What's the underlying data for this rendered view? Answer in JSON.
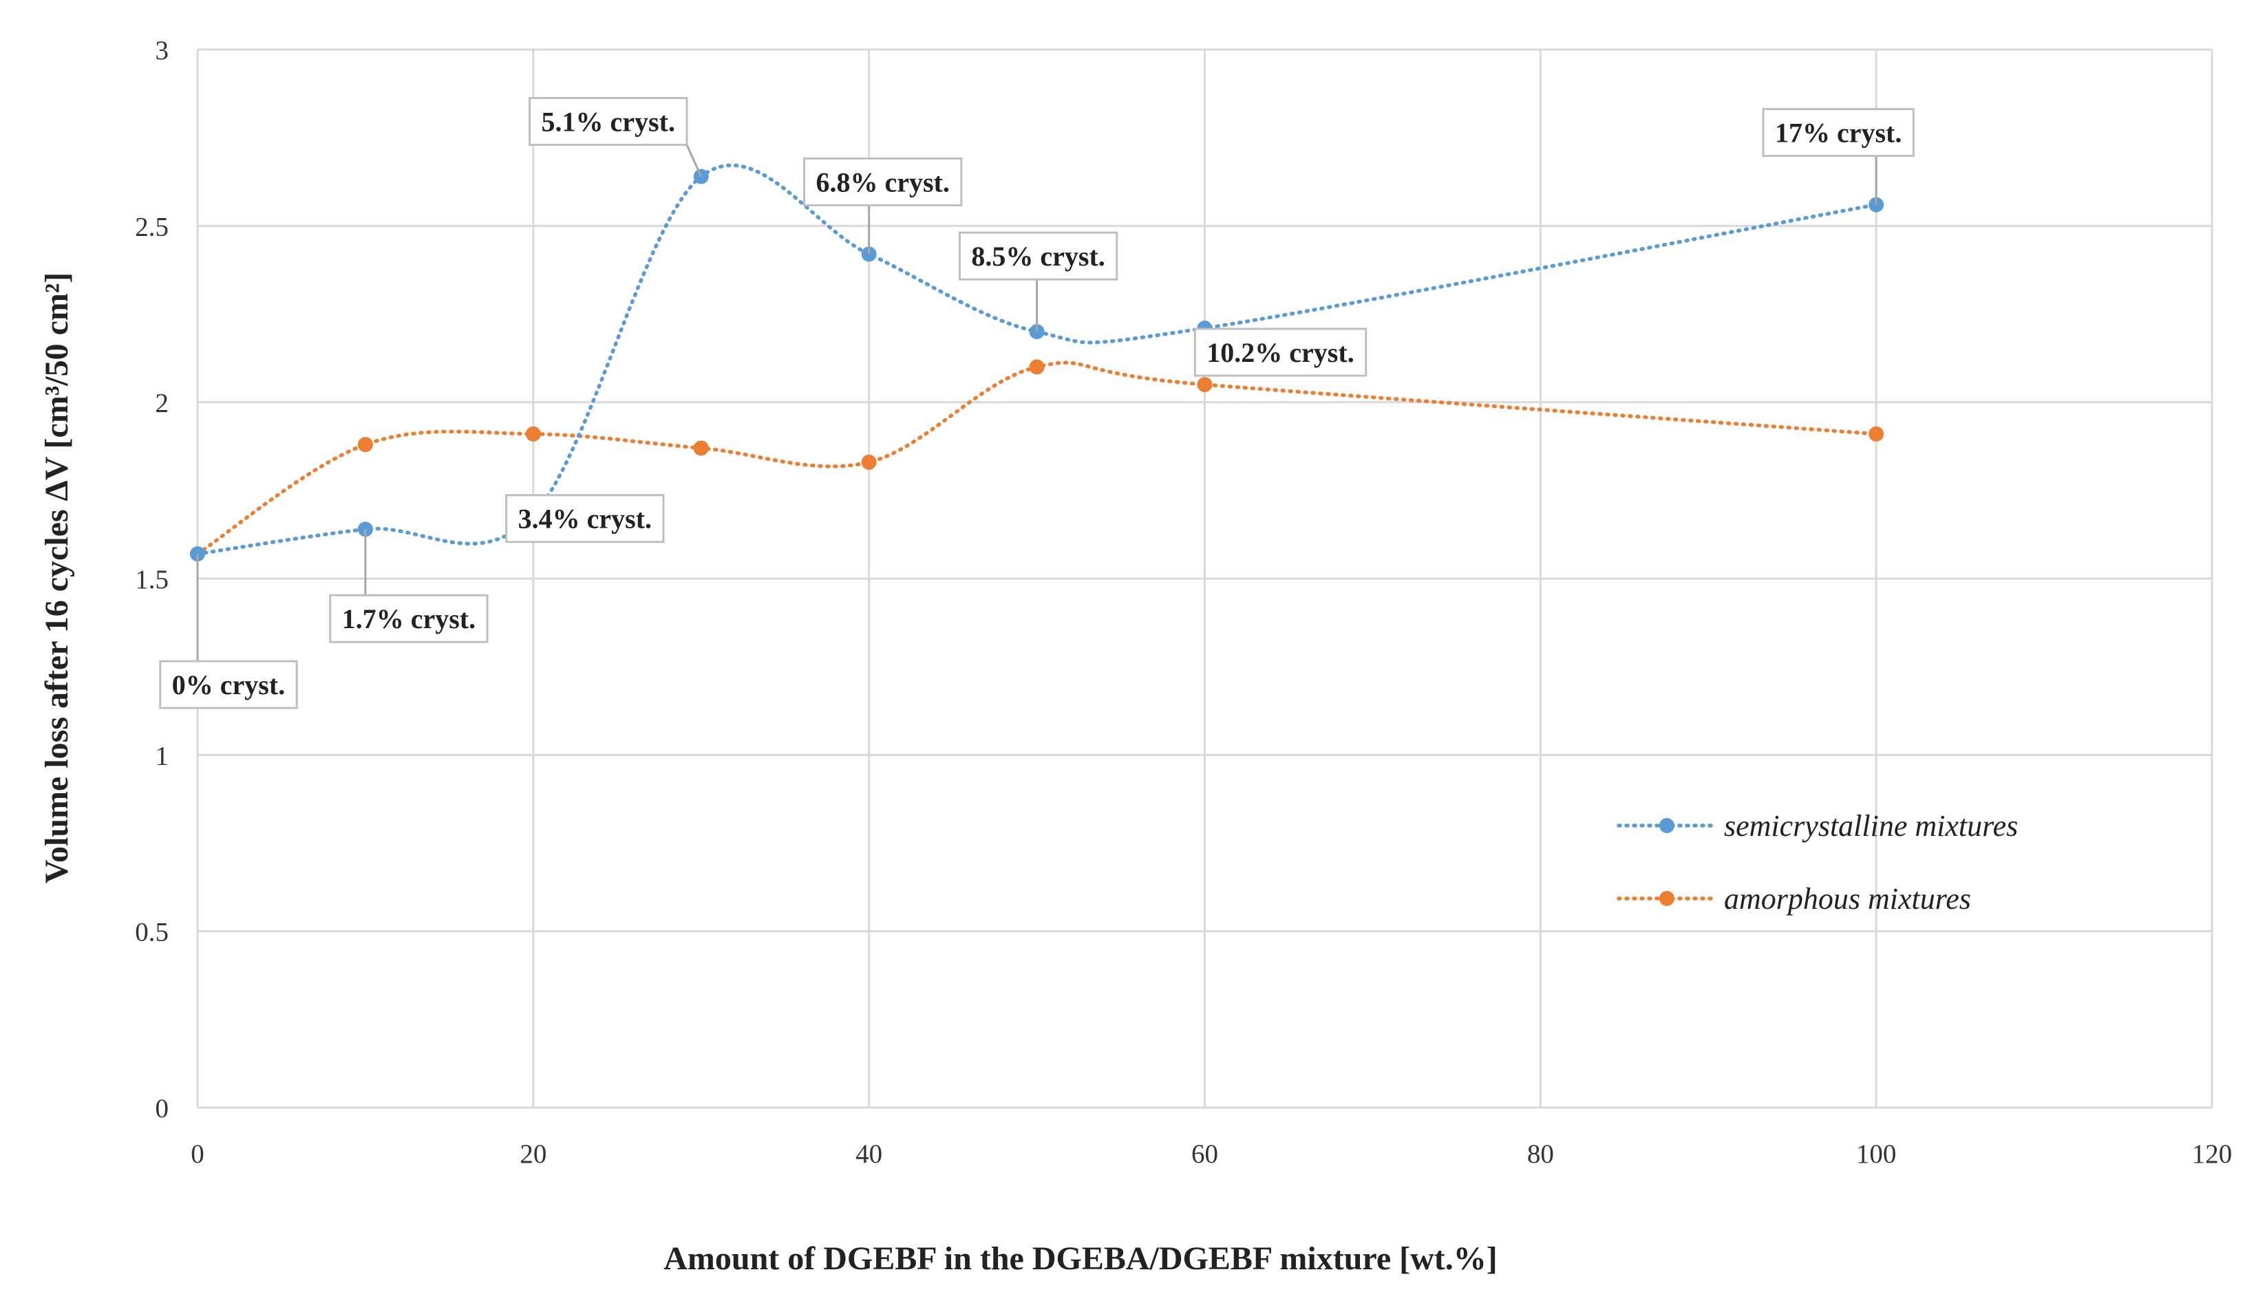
{
  "chart_data": {
    "type": "line",
    "title": "",
    "xlabel": "Amount of DGEBF in the DGEBA/DGEBF mixture [wt.%]",
    "ylabel": "Volume loss after 16 cycles   ΔV [cm³/50 cm²]",
    "xlim": [
      0,
      120
    ],
    "ylim": [
      0,
      3
    ],
    "xticks": [
      0,
      20,
      40,
      60,
      80,
      100,
      120
    ],
    "yticks": [
      0,
      0.5,
      1,
      1.5,
      2,
      2.5,
      3
    ],
    "ytick_labels": [
      "0",
      "0.5",
      "1",
      "1.5",
      "2",
      "2.5",
      "3"
    ],
    "grid": true,
    "legend_position": "lower-right",
    "series": [
      {
        "name": "semicrystalline mixtures",
        "color": "#5b9bd5",
        "x": [
          0,
          10,
          20,
          30,
          40,
          50,
          60,
          100
        ],
        "y": [
          1.57,
          1.64,
          1.68,
          2.64,
          2.42,
          2.2,
          2.21,
          2.56
        ],
        "labels": [
          "0% cryst.",
          "1.7% cryst.",
          "3.4% cryst.",
          "5.1% cryst.",
          "6.8% cryst.",
          "8.5% cryst.",
          "10.2% cryst.",
          "17% cryst."
        ]
      },
      {
        "name": "amorphous mixtures",
        "color": "#ed7d31",
        "x": [
          0,
          10,
          20,
          30,
          40,
          50,
          60,
          100
        ],
        "y": [
          1.57,
          1.88,
          1.91,
          1.87,
          1.83,
          2.1,
          2.05,
          1.91
        ]
      }
    ]
  }
}
